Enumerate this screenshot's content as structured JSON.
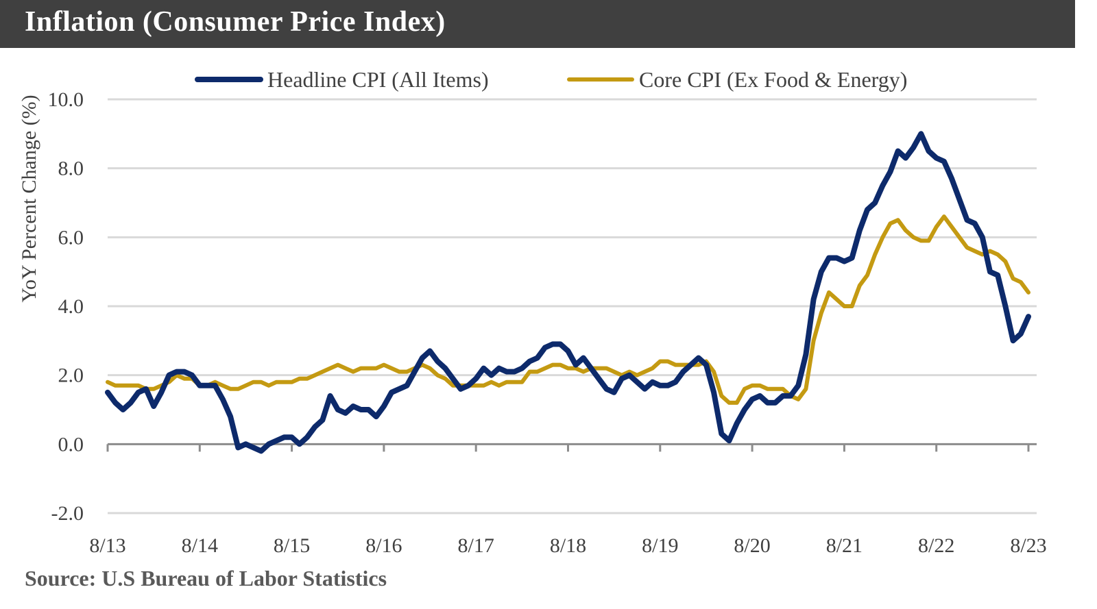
{
  "title": "Inflation (Consumer Price Index)",
  "source": "Source:  U.S Bureau of Labor Statistics",
  "chart_data": {
    "type": "line",
    "title": "Inflation (Consumer Price Index)",
    "ylabel": "YoY Percent Change (%)",
    "xlabel": "",
    "ylim": [
      -2.0,
      10.0
    ],
    "yticks": [
      "-2.0",
      "0.0",
      "2.0",
      "4.0",
      "6.0",
      "8.0",
      "10.0"
    ],
    "xticks": [
      "8/13",
      "8/14",
      "8/15",
      "8/16",
      "8/17",
      "8/18",
      "8/19",
      "8/20",
      "8/21",
      "8/22",
      "8/23"
    ],
    "x_start": "2013-08",
    "x_frequency": "monthly",
    "grid": true,
    "legend_position": "top",
    "series": [
      {
        "name": "Headline CPI (All Items)",
        "color": "#0d2a6b",
        "values": [
          1.5,
          1.2,
          1.0,
          1.2,
          1.5,
          1.6,
          1.1,
          1.5,
          2.0,
          2.1,
          2.1,
          2.0,
          1.7,
          1.7,
          1.7,
          1.3,
          0.8,
          -0.1,
          0.0,
          -0.1,
          -0.2,
          0.0,
          0.1,
          0.2,
          0.2,
          0.0,
          0.2,
          0.5,
          0.7,
          1.4,
          1.0,
          0.9,
          1.1,
          1.0,
          1.0,
          0.8,
          1.1,
          1.5,
          1.6,
          1.7,
          2.1,
          2.5,
          2.7,
          2.4,
          2.2,
          1.9,
          1.6,
          1.7,
          1.9,
          2.2,
          2.0,
          2.2,
          2.1,
          2.1,
          2.2,
          2.4,
          2.5,
          2.8,
          2.9,
          2.9,
          2.7,
          2.3,
          2.5,
          2.2,
          1.9,
          1.6,
          1.5,
          1.9,
          2.0,
          1.8,
          1.6,
          1.8,
          1.7,
          1.7,
          1.8,
          2.1,
          2.3,
          2.5,
          2.3,
          1.5,
          0.3,
          0.1,
          0.6,
          1.0,
          1.3,
          1.4,
          1.2,
          1.2,
          1.4,
          1.4,
          1.7,
          2.6,
          4.2,
          5.0,
          5.4,
          5.4,
          5.3,
          5.4,
          6.2,
          6.8,
          7.0,
          7.5,
          7.9,
          8.5,
          8.3,
          8.6,
          9.0,
          8.5,
          8.3,
          8.2,
          7.7,
          7.1,
          6.5,
          6.4,
          6.0,
          5.0,
          4.9,
          4.0,
          3.0,
          3.2,
          3.7
        ]
      },
      {
        "name": "Core CPI (Ex Food & Energy)",
        "color": "#c49a12",
        "values": [
          1.8,
          1.7,
          1.7,
          1.7,
          1.7,
          1.6,
          1.6,
          1.7,
          1.8,
          2.0,
          1.9,
          1.9,
          1.7,
          1.7,
          1.8,
          1.7,
          1.6,
          1.6,
          1.7,
          1.8,
          1.8,
          1.7,
          1.8,
          1.8,
          1.8,
          1.9,
          1.9,
          2.0,
          2.1,
          2.2,
          2.3,
          2.2,
          2.1,
          2.2,
          2.2,
          2.2,
          2.3,
          2.2,
          2.1,
          2.1,
          2.2,
          2.3,
          2.2,
          2.0,
          1.9,
          1.7,
          1.7,
          1.7,
          1.7,
          1.7,
          1.8,
          1.7,
          1.8,
          1.8,
          1.8,
          2.1,
          2.1,
          2.2,
          2.3,
          2.3,
          2.2,
          2.2,
          2.1,
          2.2,
          2.2,
          2.2,
          2.1,
          2.0,
          2.1,
          2.0,
          2.1,
          2.2,
          2.4,
          2.4,
          2.3,
          2.3,
          2.3,
          2.3,
          2.4,
          2.1,
          1.4,
          1.2,
          1.2,
          1.6,
          1.7,
          1.7,
          1.6,
          1.6,
          1.6,
          1.4,
          1.3,
          1.6,
          3.0,
          3.8,
          4.4,
          4.2,
          4.0,
          4.0,
          4.6,
          4.9,
          5.5,
          6.0,
          6.4,
          6.5,
          6.2,
          6.0,
          5.9,
          5.9,
          6.3,
          6.6,
          6.3,
          6.0,
          5.7,
          5.6,
          5.5,
          5.6,
          5.5,
          5.3,
          4.8,
          4.7,
          4.4
        ]
      }
    ]
  }
}
